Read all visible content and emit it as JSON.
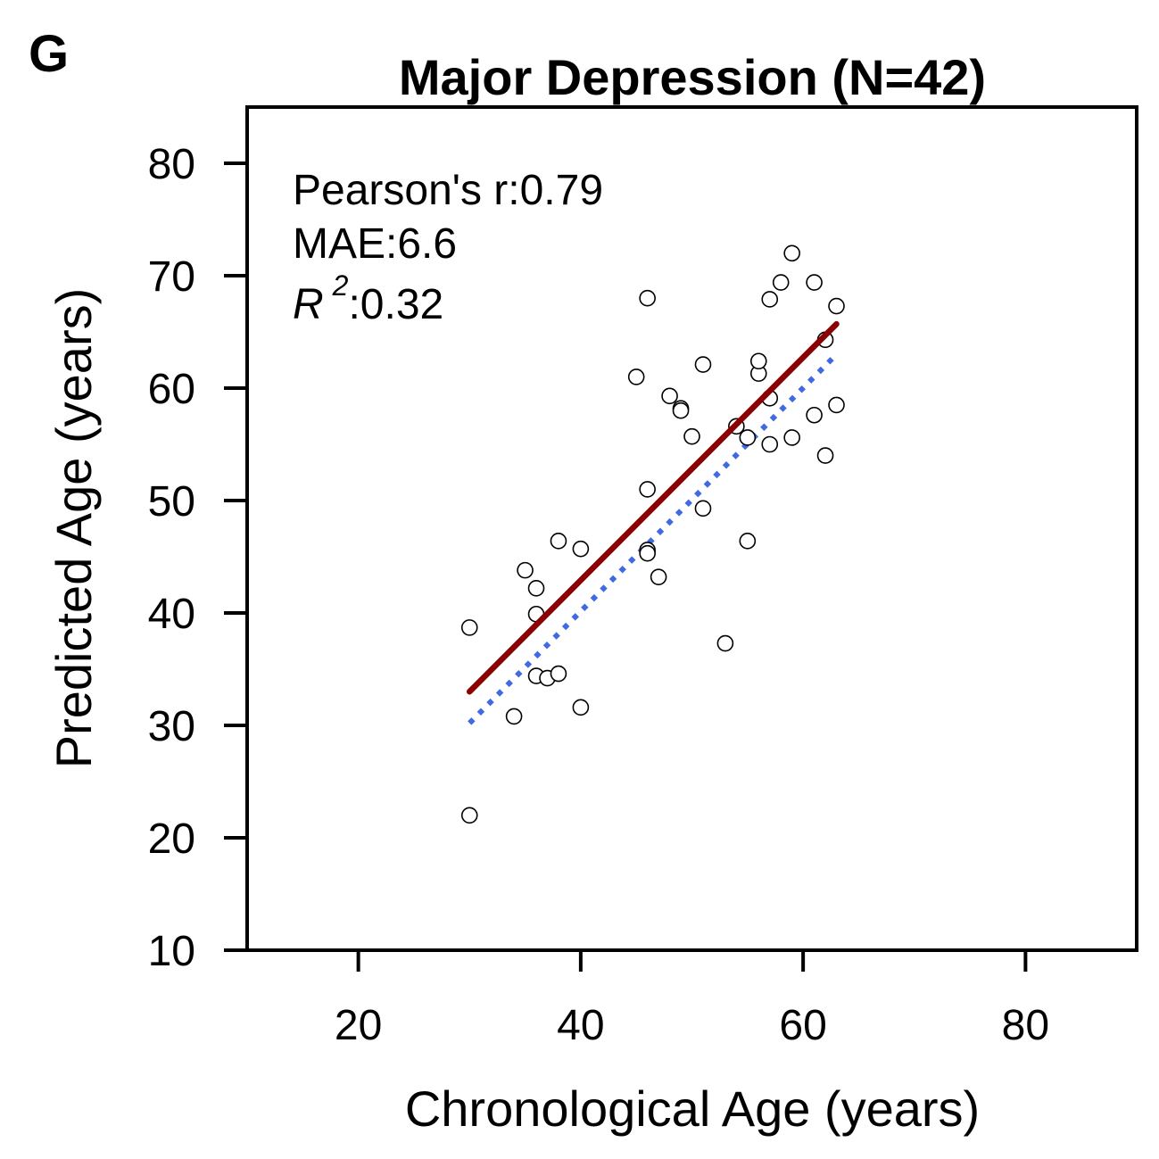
{
  "panel_label": "G",
  "chart_data": {
    "type": "scatter",
    "title": "Major Depression (N=42)",
    "xlabel": "Chronological Age (years)",
    "ylabel": "Predicted Age (years)",
    "xlim": [
      10,
      90
    ],
    "ylim": [
      10,
      85
    ],
    "xticks": [
      20,
      40,
      60,
      80
    ],
    "yticks": [
      10,
      20,
      30,
      40,
      50,
      60,
      70,
      80
    ],
    "grid": false,
    "stats": {
      "pearson": "Pearson's r:0.79",
      "mae": "MAE:6.6",
      "r2_symbol": "R",
      "r2_exp": "2",
      "r2_value": ":0.32"
    },
    "points": {
      "x": [
        30,
        30,
        34,
        35,
        36,
        36,
        36,
        37,
        38,
        38,
        40,
        40,
        45,
        46,
        46,
        46,
        46,
        47,
        48,
        49,
        49,
        50,
        51,
        51,
        53,
        54,
        55,
        55,
        56,
        56,
        57,
        57,
        57,
        58,
        59,
        59,
        61,
        61,
        62,
        62,
        63,
        63
      ],
      "y": [
        22.0,
        38.7,
        30.8,
        43.8,
        42.2,
        39.9,
        34.4,
        34.2,
        34.6,
        46.4,
        31.6,
        45.7,
        61.0,
        68.0,
        51.0,
        45.6,
        45.3,
        43.2,
        59.3,
        58.2,
        58.0,
        55.7,
        62.1,
        49.3,
        37.3,
        56.6,
        55.6,
        46.4,
        61.3,
        62.4,
        59.1,
        55.0,
        67.9,
        69.4,
        72.0,
        55.6,
        57.6,
        69.4,
        64.3,
        54.0,
        67.3,
        58.5
      ]
    },
    "fit_line": {
      "x": [
        30,
        63
      ],
      "y": [
        33.0,
        65.7
      ],
      "color": "#8b0000",
      "style": "solid"
    },
    "corrected_line": {
      "x": [
        30,
        63
      ],
      "y": [
        30.2,
        63.0
      ],
      "color": "#4169e1",
      "style": "dotted"
    },
    "marker": {
      "fill": "#ffffff",
      "edge": "#000000"
    }
  }
}
